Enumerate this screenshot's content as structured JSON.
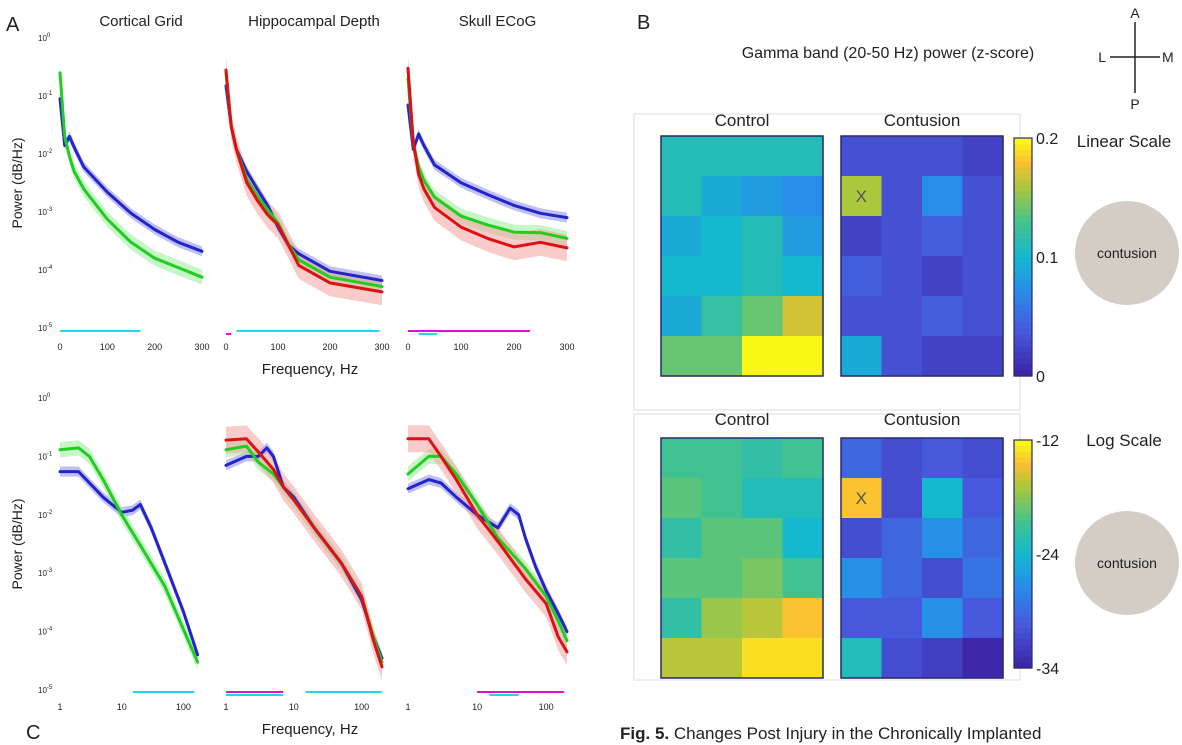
{
  "panel_labels": {
    "a": "A",
    "b": "B",
    "c": "C"
  },
  "chart_data": [
    {
      "type": "line",
      "panel": "A",
      "row": "linear-frequency",
      "columns": [
        "Cortical Grid",
        "Hippocampal Depth",
        "Skull ECoG"
      ],
      "xlabel": "Frequency, Hz",
      "ylabel": "Power (dB/Hz)",
      "x_scale": "linear",
      "xlim": [
        0,
        300
      ],
      "x_ticks": [
        "0",
        "100",
        "200",
        "300"
      ],
      "y_scale": "log",
      "ylim": [
        1e-05,
        1
      ],
      "y_ticks": [
        "10^0",
        "10^-1",
        "10^-2",
        "10^-3",
        "10^-4",
        "10^-5"
      ],
      "series_colors": {
        "blue": "#2424cc",
        "green": "#22cc22",
        "red": "#dd1111"
      },
      "panels": [
        {
          "title": "Cortical Grid",
          "series": [
            {
              "color": "blue",
              "x": [
                0,
                10,
                20,
                30,
                50,
                100,
                150,
                200,
                250,
                300
              ],
              "y": [
                0.09,
                0.014,
                0.02,
                0.013,
                0.006,
                0.0022,
                0.00095,
                0.0005,
                0.0003,
                0.00021
              ]
            },
            {
              "color": "green",
              "x": [
                0,
                10,
                20,
                30,
                50,
                100,
                150,
                200,
                250,
                300
              ],
              "y": [
                0.25,
                0.02,
                0.009,
                0.005,
                0.0025,
                0.00075,
                0.0003,
                0.00016,
                0.00011,
                7.5e-05
              ]
            }
          ],
          "significance_bars": [
            {
              "color": "#22d8e8",
              "x": [
                0,
                170
              ]
            }
          ]
        },
        {
          "title": "Hippocampal Depth",
          "series": [
            {
              "color": "blue",
              "x": [
                0,
                10,
                20,
                40,
                60,
                80,
                100,
                120,
                140,
                200,
                300
              ],
              "y": [
                0.15,
                0.03,
                0.012,
                0.005,
                0.0025,
                0.0013,
                0.00055,
                0.00027,
                0.00019,
                9.5e-05,
                6.6e-05
              ]
            },
            {
              "color": "green",
              "x": [
                0,
                10,
                20,
                40,
                60,
                80,
                100,
                120,
                140,
                200,
                300
              ],
              "y": [
                0.25,
                0.03,
                0.012,
                0.0037,
                0.0019,
                0.0011,
                0.00065,
                0.00028,
                0.00015,
                7.5e-05,
                5.2e-05
              ]
            },
            {
              "color": "red",
              "x": [
                0,
                10,
                20,
                40,
                60,
                80,
                100,
                120,
                140,
                200,
                300
              ],
              "y": [
                0.28,
                0.03,
                0.012,
                0.0032,
                0.0016,
                0.0009,
                0.0006,
                0.00027,
                0.00012,
                6e-05,
                4.2e-05
              ]
            }
          ],
          "significance_bars": [
            {
              "color": "#22d8e8",
              "x": [
                20,
                295
              ]
            },
            {
              "color": "#e010d0",
              "x": [
                0,
                10
              ]
            }
          ]
        },
        {
          "title": "Skull ECoG",
          "series": [
            {
              "color": "blue",
              "x": [
                0,
                10,
                20,
                30,
                50,
                100,
                150,
                200,
                250,
                300
              ],
              "y": [
                0.07,
                0.012,
                0.022,
                0.014,
                0.0065,
                0.0032,
                0.002,
                0.0013,
                0.00095,
                0.0008
              ]
            },
            {
              "color": "green",
              "x": [
                0,
                10,
                20,
                30,
                50,
                100,
                150,
                200,
                250,
                300
              ],
              "y": [
                0.2,
                0.015,
                0.006,
                0.0035,
                0.0018,
                0.00085,
                0.0006,
                0.00045,
                0.00044,
                0.00035
              ]
            },
            {
              "color": "red",
              "x": [
                0,
                10,
                20,
                30,
                50,
                100,
                150,
                200,
                250,
                300
              ],
              "y": [
                0.3,
                0.016,
                0.0045,
                0.0025,
                0.0012,
                0.00055,
                0.00035,
                0.00025,
                0.0003,
                0.00024
              ]
            }
          ],
          "significance_bars": [
            {
              "color": "#e010d0",
              "x": [
                0,
                230
              ]
            },
            {
              "color": "#22d8e8",
              "x": [
                20,
                55
              ]
            }
          ]
        }
      ]
    },
    {
      "type": "line",
      "panel": "A",
      "row": "log-frequency",
      "columns": [
        "Cortical Grid",
        "Hippocampal Depth",
        "Skull ECoG"
      ],
      "xlabel": "Frequency, Hz",
      "ylabel": "Power (dB/Hz)",
      "x_scale": "log",
      "xlim": [
        1,
        200
      ],
      "x_ticks": [
        "1",
        "10",
        "100"
      ],
      "y_scale": "log",
      "ylim": [
        1e-05,
        1
      ],
      "y_ticks": [
        "10^0",
        "10^-1",
        "10^-2",
        "10^-3",
        "10^-4",
        "10^-5"
      ],
      "panels": [
        {
          "title": "Cortical Grid",
          "series": [
            {
              "color": "blue",
              "x": [
                1,
                2,
                5,
                10,
                15,
                20,
                30,
                50,
                100,
                170
              ],
              "y": [
                0.055,
                0.055,
                0.02,
                0.011,
                0.012,
                0.015,
                0.006,
                0.0015,
                0.00022,
                4e-05
              ]
            },
            {
              "color": "green",
              "x": [
                1,
                2,
                3,
                5,
                10,
                20,
                50,
                100,
                170
              ],
              "y": [
                0.13,
                0.14,
                0.1,
                0.04,
                0.01,
                0.003,
                0.0006,
                0.00011,
                3e-05
              ]
            }
          ],
          "significance_bars": [
            {
              "color": "#22d8e8",
              "x": [
                15,
                150
              ]
            }
          ]
        },
        {
          "title": "Hippocampal Depth",
          "series": [
            {
              "color": "blue",
              "x": [
                1,
                2,
                3,
                4,
                5,
                7,
                10,
                20,
                50,
                100,
                150,
                200
              ],
              "y": [
                0.07,
                0.1,
                0.1,
                0.14,
                0.1,
                0.03,
                0.02,
                0.006,
                0.0015,
                0.00035,
                8e-05,
                3.5e-05
              ]
            },
            {
              "color": "green",
              "x": [
                1,
                2,
                3,
                5,
                7,
                10,
                20,
                50,
                100,
                150,
                200
              ],
              "y": [
                0.13,
                0.15,
                0.08,
                0.05,
                0.03,
                0.018,
                0.006,
                0.0015,
                0.0004,
                8e-05,
                3e-05
              ]
            },
            {
              "color": "red",
              "x": [
                1,
                2,
                3,
                5,
                7,
                10,
                20,
                50,
                100,
                150,
                200
              ],
              "y": [
                0.19,
                0.2,
                0.12,
                0.06,
                0.03,
                0.018,
                0.006,
                0.0015,
                0.0004,
                7e-05,
                2.5e-05
              ]
            }
          ],
          "significance_bars": [
            {
              "color": "#e010d0",
              "x": [
                1,
                5
              ]
            },
            {
              "color": "#f0c020",
              "x": [
                3.2,
                4.2
              ]
            },
            {
              "color": "#e010d0",
              "x": [
                5,
                7
              ]
            },
            {
              "color": "#22d8e8",
              "x": [
                1,
                7
              ]
            },
            {
              "color": "#22d8e8",
              "x": [
                15,
                200
              ]
            }
          ]
        },
        {
          "title": "Skull ECoG",
          "series": [
            {
              "color": "blue",
              "x": [
                1,
                2,
                3,
                5,
                10,
                20,
                30,
                40,
                50,
                70,
                100,
                150,
                200
              ],
              "y": [
                0.028,
                0.04,
                0.035,
                0.02,
                0.01,
                0.006,
                0.013,
                0.01,
                0.004,
                0.0013,
                0.0005,
                0.0002,
                0.0001
              ]
            },
            {
              "color": "green",
              "x": [
                1,
                2,
                3,
                5,
                10,
                20,
                50,
                100,
                150,
                200
              ],
              "y": [
                0.05,
                0.1,
                0.1,
                0.05,
                0.015,
                0.004,
                0.0012,
                0.0004,
                0.00015,
                7e-05
              ]
            },
            {
              "color": "red",
              "x": [
                1,
                2,
                3,
                5,
                10,
                20,
                50,
                100,
                150,
                200
              ],
              "y": [
                0.2,
                0.2,
                0.1,
                0.04,
                0.01,
                0.0035,
                0.0008,
                0.0003,
                8e-05,
                4.5e-05
              ]
            }
          ],
          "significance_bars": [
            {
              "color": "#e010d0",
              "x": [
                10,
                180
              ]
            },
            {
              "color": "#22d8e8",
              "x": [
                15,
                40
              ]
            }
          ]
        }
      ]
    },
    {
      "type": "heatmap",
      "panel": "B",
      "title": "Gamma band (20-50 Hz) power (z-score)",
      "orientation_labels": {
        "top": "A",
        "left": "L",
        "right": "M",
        "bottom": "P"
      },
      "scales": [
        {
          "name": "Linear Scale",
          "colorbar_ticks": [
            "0.2",
            "0.1",
            "0"
          ],
          "range": [
            0,
            0.2
          ],
          "marker": "contusion",
          "grids": [
            {
              "title": "Control",
              "rows": [
                [
                  0.11,
                  0.11,
                  0.11,
                  0.11
                ],
                [
                  0.11,
                  0.09,
                  0.08,
                  0.07
                ],
                [
                  0.09,
                  0.1,
                  0.11,
                  0.08
                ],
                [
                  0.1,
                  0.1,
                  0.11,
                  0.1
                ],
                [
                  0.09,
                  0.12,
                  0.14,
                  0.17
                ],
                [
                  0.14,
                  0.14,
                  0.2,
                  0.2
                ]
              ]
            },
            {
              "title": "Contusion",
              "rows": [
                [
                  0.03,
                  0.03,
                  0.03,
                  0.02
                ],
                [
                  0.16,
                  0.03,
                  0.07,
                  0.03
                ],
                [
                  0.02,
                  0.03,
                  0.04,
                  0.03
                ],
                [
                  0.04,
                  0.03,
                  0.02,
                  0.03
                ],
                [
                  0.03,
                  0.03,
                  0.04,
                  0.03
                ],
                [
                  0.09,
                  0.03,
                  0.02,
                  0.02
                ]
              ],
              "mark": {
                "row": 1,
                "col": 0,
                "text": "X"
              }
            }
          ]
        },
        {
          "name": "Log Scale",
          "colorbar_ticks": [
            "-12",
            "-24",
            "-34"
          ],
          "range": [
            -34,
            -12
          ],
          "marker": "contusion",
          "grids": [
            {
              "title": "Control",
              "rows": [
                [
                  -20,
                  -20,
                  -21,
                  -20
                ],
                [
                  -19,
                  -20,
                  -22,
                  -22
                ],
                [
                  -21,
                  -19,
                  -19,
                  -23
                ],
                [
                  -19,
                  -19,
                  -18,
                  -20
                ],
                [
                  -21,
                  -17,
                  -16,
                  -14
                ],
                [
                  -16,
                  -16,
                  -13,
                  -13
                ]
              ]
            },
            {
              "title": "Contusion",
              "rows": [
                [
                  -29,
                  -31,
                  -30,
                  -31
                ],
                [
                  -14,
                  -31,
                  -23,
                  -30
                ],
                [
                  -31,
                  -29,
                  -26,
                  -29
                ],
                [
                  -26,
                  -29,
                  -31,
                  -28
                ],
                [
                  -30,
                  -30,
                  -26,
                  -30
                ],
                [
                  -22,
                  -31,
                  -32,
                  -34
                ]
              ],
              "mark": {
                "row": 1,
                "col": 0,
                "text": "X"
              }
            }
          ]
        }
      ]
    }
  ],
  "caption": {
    "label": "Fig. 5.",
    "text": "Changes Post Injury in the Chronically Implanted"
  }
}
